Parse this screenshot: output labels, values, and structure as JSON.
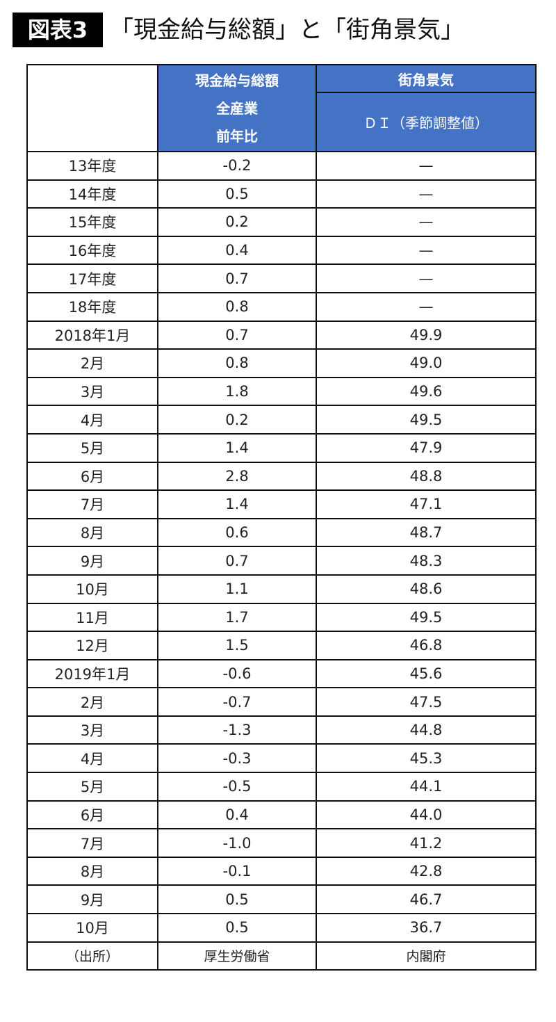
{
  "title": {
    "badge": "図表3",
    "text": "「現金給与総額」と「街角景気」"
  },
  "header": {
    "col1": "",
    "col2_lines": [
      "現金給与総額",
      "全産業",
      "前年比"
    ],
    "col3_top": "街角景気",
    "col3_sub": "ＤＩ（季節調整値）"
  },
  "header_color": "#4472C4",
  "rows": [
    [
      "13年度",
      "-0.2",
      "—"
    ],
    [
      "14年度",
      "0.5",
      "—"
    ],
    [
      "15年度",
      "0.2",
      "—"
    ],
    [
      "16年度",
      "0.4",
      "—"
    ],
    [
      "17年度",
      "0.7",
      "—"
    ],
    [
      "18年度",
      "0.8",
      "—"
    ],
    [
      "2018年1月",
      "0.7",
      "49.9"
    ],
    [
      "2月",
      "0.8",
      "49.0"
    ],
    [
      "3月",
      "1.8",
      "49.6"
    ],
    [
      "4月",
      "0.2",
      "49.5"
    ],
    [
      "5月",
      "1.4",
      "47.9"
    ],
    [
      "6月",
      "2.8",
      "48.8"
    ],
    [
      "7月",
      "1.4",
      "47.1"
    ],
    [
      "8月",
      "0.6",
      "48.7"
    ],
    [
      "9月",
      "0.7",
      "48.3"
    ],
    [
      "10月",
      "1.1",
      "48.6"
    ],
    [
      "11月",
      "1.7",
      "49.5"
    ],
    [
      "12月",
      "1.5",
      "46.8"
    ],
    [
      "2019年1月",
      "-0.6",
      "45.6"
    ],
    [
      "2月",
      "-0.7",
      "47.5"
    ],
    [
      "3月",
      "-1.3",
      "44.8"
    ],
    [
      "4月",
      "-0.3",
      "45.3"
    ],
    [
      "5月",
      "-0.5",
      "44.1"
    ],
    [
      "6月",
      "0.4",
      "44.0"
    ],
    [
      "7月",
      "-1.0",
      "41.2"
    ],
    [
      "8月",
      "-0.1",
      "42.8"
    ],
    [
      "9月",
      "0.5",
      "46.7"
    ],
    [
      "10月",
      "0.5",
      "36.7"
    ]
  ],
  "source": [
    "（出所）",
    "厚生労働省",
    "内閣府"
  ]
}
